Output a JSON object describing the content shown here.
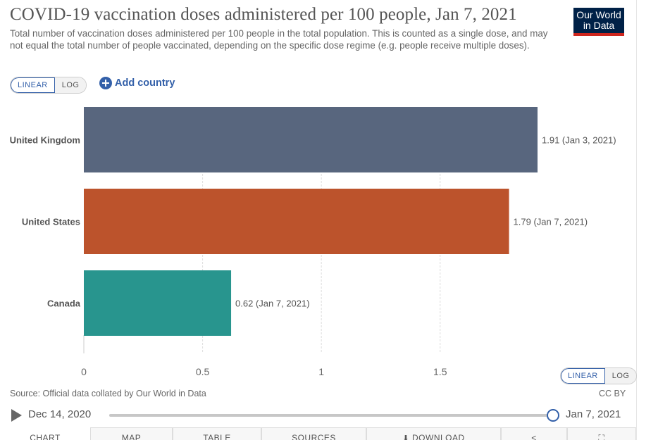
{
  "title": "COVID-19 vaccination doses administered per 100 people, Jan 7, 2021",
  "subtitle": "Total number of vaccination doses administered per 100 people in the total population. This is counted as a single dose, and may not equal the total number of people vaccinated, depending on the specific dose regime (e.g. people receive multiple doses).",
  "logo": {
    "line1": "Our World",
    "line2": "in Data"
  },
  "scale_toggle": {
    "linear": "LINEAR",
    "log": "LOG",
    "selected": "linear"
  },
  "add_country": "Add country",
  "chart_data": {
    "type": "bar",
    "orientation": "horizontal",
    "categories": [
      "United Kingdom",
      "United States",
      "Canada"
    ],
    "values": [
      1.91,
      1.79,
      0.62
    ],
    "value_labels": [
      "1.91 (Jan 3, 2021)",
      "1.79 (Jan 7, 2021)",
      "0.62 (Jan 7, 2021)"
    ],
    "colors": [
      "#58667e",
      "#bc532c",
      "#28958e"
    ],
    "x_ticks": [
      0,
      0.5,
      1,
      1.5
    ],
    "x_tick_labels": [
      "0",
      "0.5",
      "1",
      "1.5"
    ],
    "xlim": [
      0,
      1.91
    ],
    "grid": "vertical-dashed"
  },
  "source": "Source: Official data collated by Our World in Data",
  "license": "CC BY",
  "timeline": {
    "start": "Dec 14, 2020",
    "end": "Jan 7, 2021",
    "position": 1.0
  },
  "tabs": [
    "CHART",
    "MAP",
    "TABLE",
    "SOURCES",
    "DOWNLOAD",
    "",
    ""
  ]
}
